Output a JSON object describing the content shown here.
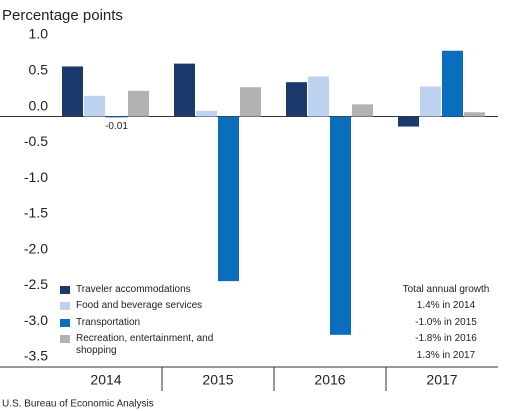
{
  "chart_data": {
    "type": "bar",
    "ylabel": "Percentage points",
    "categories": [
      "2014",
      "2015",
      "2016",
      "2017"
    ],
    "series": [
      {
        "name": "Traveler accommodations",
        "color": "#1b3a6b",
        "values": [
          0.7,
          0.74,
          0.48,
          -0.14
        ]
      },
      {
        "name": "Food and beverage services",
        "color": "#bcd2ee",
        "values": [
          0.29,
          0.08,
          0.56,
          0.42
        ]
      },
      {
        "name": "Transportation",
        "color": "#0a6ebd",
        "values": [
          -0.01,
          -2.3,
          -3.05,
          0.92
        ]
      },
      {
        "name": "Recreation, entertainment, and shopping",
        "color": "#b2b2b2",
        "values": [
          0.36,
          0.41,
          0.17,
          0.06
        ]
      }
    ],
    "ylim": [
      -3.5,
      1.0
    ],
    "yticks": [
      {
        "value": 1,
        "label": "1.0"
      },
      0.5,
      {
        "value": 0,
        "label": "0.0"
      },
      -0.5,
      {
        "value": -1,
        "label": "-1.0"
      },
      -1.5,
      {
        "value": -2,
        "label": "-2.0"
      },
      -2.5,
      {
        "value": -3,
        "label": "-3.0"
      },
      -3.5
    ],
    "grid": false,
    "legend": "lower left",
    "annotation_box": {
      "title": "Total annual growth",
      "lines": [
        "1.4% in 2014",
        "-1.0% in 2015",
        "-1.8% in 2016",
        "1.3% in 2017"
      ]
    },
    "source": "U.S. Bureau of Economic Analysis"
  }
}
